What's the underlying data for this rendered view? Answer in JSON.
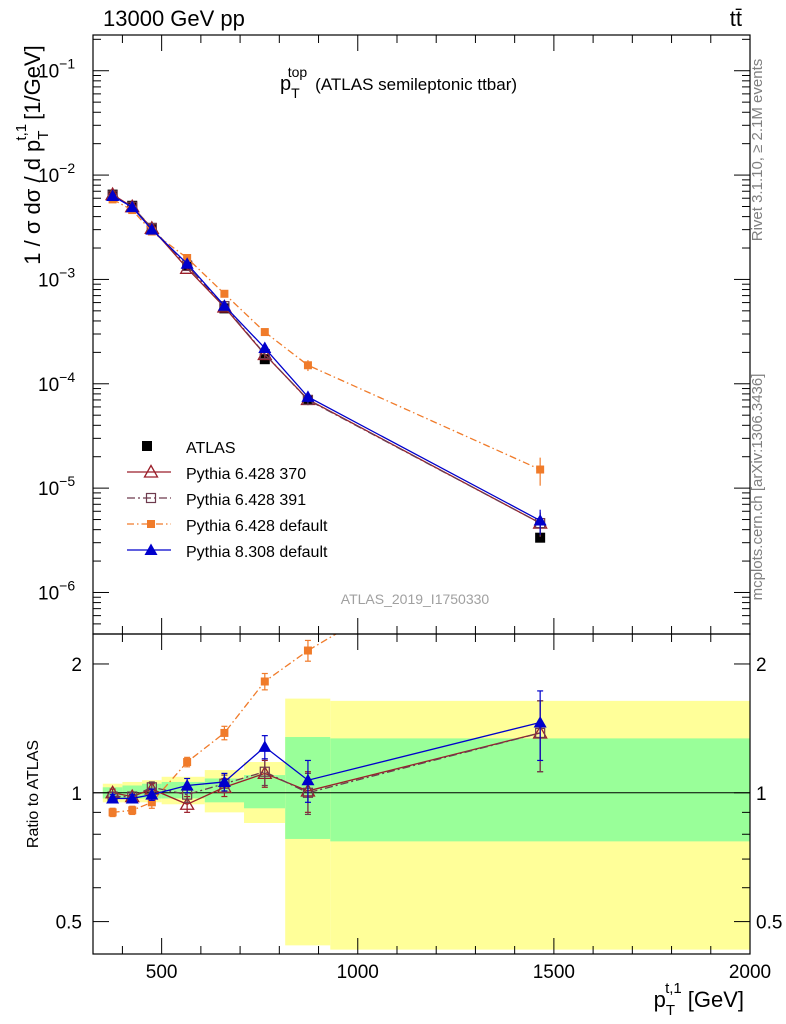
{
  "header": {
    "left": "13000 GeV pp",
    "right": "tt̄"
  },
  "side": {
    "rivet": "Rivet 3.1.10, ≥ 2.1M events",
    "mcplots": "mcplots.cern.ch [arXiv:1306.3436]"
  },
  "chart_data": {
    "type": "line",
    "title_main": "p",
    "title_sub": "T",
    "title_sup": "top",
    "title_rest": "(ATLAS semileptonic ttbar)",
    "analysis": "ATLAS_2019_I1750330",
    "ylabel": "1 / σ dσ / d p",
    "ylabel_sub": "T",
    "ylabel_sup": "t,1",
    "ylabel_unit": "[1/GeV]",
    "ratio_ylabel": "Ratio to ATLAS",
    "xlabel": "p",
    "xlabel_sub": "T",
    "xlabel_sup": "t,1",
    "xlabel_unit": "[GeV]",
    "xlim": [
      325,
      2000
    ],
    "ylim": [
      4e-07,
      0.22
    ],
    "ratio_ylim": [
      0.42,
      2.35
    ],
    "y_scale": "log",
    "x_ticks": [
      500,
      1000,
      1500,
      2000
    ],
    "y_ticks": [
      {
        "base": "10",
        "exp": "−1",
        "v": 0.1
      },
      {
        "base": "10",
        "exp": "−2",
        "v": 0.01
      },
      {
        "base": "10",
        "exp": "−3",
        "v": 0.001
      },
      {
        "base": "10",
        "exp": "−4",
        "v": 0.0001
      },
      {
        "base": "10",
        "exp": "−5",
        "v": 1e-05
      },
      {
        "base": "10",
        "exp": "−6",
        "v": 1e-06
      }
    ],
    "ratio_ticks": [
      {
        "label": "0.5",
        "v": 0.5
      },
      {
        "label": "1",
        "v": 1
      },
      {
        "label": "2",
        "v": 2
      }
    ],
    "bins": [
      {
        "lo": 350,
        "hi": 400
      },
      {
        "lo": 400,
        "hi": 450
      },
      {
        "lo": 450,
        "hi": 500
      },
      {
        "lo": 500,
        "hi": 610
      },
      {
        "lo": 610,
        "hi": 710
      },
      {
        "lo": 710,
        "hi": 815
      },
      {
        "lo": 815,
        "hi": 930
      },
      {
        "lo": 930,
        "hi": 2000
      }
    ],
    "band_green": [
      [
        0.97,
        1.03
      ],
      [
        0.97,
        1.04
      ],
      [
        0.97,
        1.05
      ],
      [
        0.97,
        1.06
      ],
      [
        0.95,
        1.08
      ],
      [
        0.92,
        1.1
      ],
      [
        0.78,
        1.35
      ],
      [
        0.77,
        1.34
      ]
    ],
    "band_yellow": [
      [
        0.95,
        1.05
      ],
      [
        0.95,
        1.06
      ],
      [
        0.95,
        1.07
      ],
      [
        0.94,
        1.09
      ],
      [
        0.9,
        1.13
      ],
      [
        0.85,
        1.18
      ],
      [
        0.44,
        1.66
      ],
      [
        0.43,
        1.64
      ]
    ],
    "x": [
      375,
      425,
      475,
      565,
      660,
      763,
      873,
      1465
    ],
    "data": {
      "name": "ATLAS",
      "y": [
        0.0065,
        0.00508,
        0.00303,
        0.00136,
        0.000528,
        0.000172,
        7e-05,
        3.35e-06
      ]
    },
    "series": [
      {
        "name": "Pythia 6.428 370",
        "color": "#9b1f2a",
        "marker": "triangle-open",
        "dash": "",
        "ratio": [
          1.0,
          0.98,
          1.02,
          0.94,
          1.03,
          1.11,
          1.01,
          1.38
        ],
        "ratio_err": [
          0.02,
          0.02,
          0.03,
          0.04,
          0.05,
          0.08,
          0.11,
          0.26
        ]
      },
      {
        "name": "Pythia 6.428 391",
        "color": "#6e3b4e",
        "marker": "square-open",
        "dash": "8,3,2,3",
        "ratio": [
          0.98,
          0.98,
          1.03,
          0.99,
          1.05,
          1.12,
          1.0,
          1.38
        ],
        "ratio_err": [
          0.02,
          0.02,
          0.03,
          0.04,
          0.05,
          0.08,
          0.11,
          0.26
        ]
      },
      {
        "name": "Pythia 6.428 default",
        "color": "#f07b2a",
        "marker": "square-filled",
        "dash": "7,3,1.5,3",
        "ratio": [
          0.9,
          0.91,
          0.95,
          1.18,
          1.38,
          1.82,
          2.15,
          4.5
        ],
        "ratio_err": [
          0.02,
          0.02,
          0.03,
          0.03,
          0.05,
          0.08,
          0.12,
          0.3
        ]
      },
      {
        "name": "Pythia 8.308 default",
        "color": "#0000cc",
        "marker": "triangle-filled",
        "dash": "",
        "ratio": [
          0.97,
          0.97,
          0.99,
          1.04,
          1.06,
          1.28,
          1.07,
          1.46
        ],
        "ratio_err": [
          0.02,
          0.02,
          0.03,
          0.04,
          0.05,
          0.08,
          0.12,
          0.27
        ]
      }
    ],
    "legend_position": "bottom-left",
    "colors": {
      "band_green": "#99ff99",
      "band_yellow": "#ffff99",
      "data": "#000000"
    }
  }
}
